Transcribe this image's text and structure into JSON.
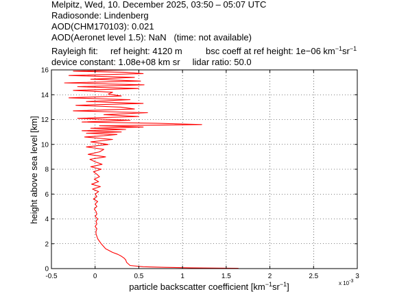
{
  "header": {
    "line1": "Melpitz, Wed, 10. December 2025, 03:50 – 05:07 UTC",
    "line2": "Radiosonde: Lindenberg",
    "line3": "AOD(CHM170103): 0.021",
    "line4": "AOD(Aeronet level 1.5): NaN   (time: not available)",
    "rayleigh": "Rayleigh fit:     ref height: 4120 m",
    "bsc_prefix": "bsc coeff at ref height: 1e−06 km",
    "bsc_exp1": "−1",
    "bsc_unit2": "sr",
    "bsc_exp2": "−1",
    "device": "device constant: 1.08e+08 km sr     lidar ratio: 50.0"
  },
  "chart_data": {
    "type": "line",
    "xlabel": "particle backscatter coefficient [km⁻¹sr⁻¹]",
    "xlabel_parts": {
      "main": "particle backscatter coefficient [km",
      "exp1": "−1",
      "mid": "sr",
      "exp2": "−1",
      "end": "]"
    },
    "ylabel": "height above sea level [km]",
    "x_multiplier": "x 10",
    "x_multiplier_exp": "-3",
    "xlim": [
      -0.5,
      3
    ],
    "ylim": [
      0,
      16
    ],
    "xticks": [
      "-0.5",
      "0",
      "0.5",
      "1",
      "1.5",
      "2",
      "2.5",
      "3"
    ],
    "yticks": [
      "0",
      "2",
      "4",
      "6",
      "8",
      "10",
      "12",
      "14",
      "16"
    ],
    "grid": true,
    "line_color": "#ff0000",
    "series": [
      {
        "x": [
          1.64,
          1.4,
          1.1,
          0.8,
          0.55,
          0.4,
          0.36,
          0.35,
          0.33,
          0.3,
          0.26,
          0.2,
          0.12,
          0.07,
          0.03,
          0.01,
          0.01,
          0.02,
          0.0,
          0.02,
          0.01,
          0.03,
          0.0,
          0.02,
          0.01,
          -0.01,
          0.02,
          0.0,
          0.03,
          -0.02,
          0.02,
          0.0,
          0.04,
          -0.03,
          0.06,
          -0.04,
          0.04,
          -0.01,
          0.05,
          0.02,
          -0.02,
          0.07,
          -0.05,
          0.08,
          0.0,
          -0.06,
          0.12,
          -0.08,
          0.05,
          0.1,
          -0.1,
          0.15,
          -0.05,
          0.2,
          -0.12,
          0.1,
          0.25,
          -0.1,
          0.3,
          -0.15,
          0.35,
          -0.05,
          0.55,
          0.05,
          1.22,
          0.7,
          -0.15,
          0.4,
          -0.2,
          0.5,
          0.1,
          0.6,
          -0.25,
          0.45,
          0.3,
          -0.22,
          0.55,
          -0.1,
          0.4,
          -0.3,
          0.3,
          0.15,
          0.2,
          -0.25,
          0.5,
          -0.2,
          0.56,
          -0.35,
          0.52,
          -0.05,
          0.45,
          -0.3,
          0.55,
          0.35,
          -0.25,
          0.4
        ],
        "y": [
          0.02,
          0.04,
          0.06,
          0.1,
          0.15,
          0.25,
          0.5,
          0.7,
          0.85,
          1.0,
          1.15,
          1.3,
          1.6,
          2.0,
          2.4,
          2.8,
          3.0,
          3.2,
          3.4,
          3.6,
          3.8,
          4.0,
          4.2,
          4.4,
          4.6,
          4.8,
          5.0,
          5.2,
          5.4,
          5.6,
          5.8,
          6.0,
          6.2,
          6.4,
          6.6,
          6.8,
          7.0,
          7.2,
          7.4,
          7.6,
          7.8,
          8.0,
          8.2,
          8.4,
          8.6,
          8.8,
          9.0,
          9.2,
          9.4,
          9.6,
          9.8,
          10.0,
          10.2,
          10.4,
          10.6,
          10.7,
          10.8,
          10.9,
          11.0,
          11.1,
          11.2,
          11.3,
          11.4,
          11.5,
          11.6,
          11.7,
          11.8,
          11.95,
          12.1,
          12.25,
          12.4,
          12.55,
          12.7,
          12.85,
          13.0,
          13.15,
          13.3,
          13.45,
          13.6,
          13.75,
          13.9,
          14.05,
          14.2,
          14.35,
          14.5,
          14.65,
          14.8,
          14.95,
          15.1,
          15.25,
          15.4,
          15.55,
          15.7,
          15.8,
          15.9,
          16.0
        ]
      }
    ]
  }
}
